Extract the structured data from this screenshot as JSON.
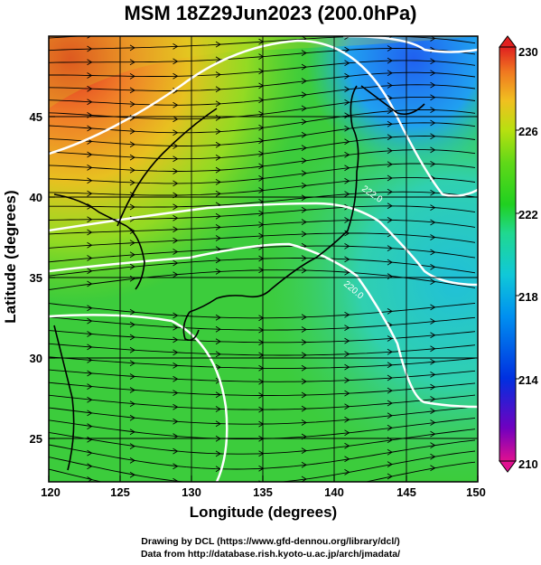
{
  "header": {
    "title": "MSM 18Z29Jun2023 (200.0hPa)"
  },
  "axes": {
    "x_label": "Longitude (degrees)",
    "y_label": "Latitude  (degrees)",
    "x_ticks": [
      "120",
      "125",
      "130",
      "135",
      "140",
      "145",
      "150"
    ],
    "y_ticks": [
      "25",
      "30",
      "35",
      "40",
      "45"
    ],
    "x_range": [
      120,
      150
    ],
    "y_range": [
      22.5,
      47.6
    ]
  },
  "colorbar": {
    "ticks": [
      "230",
      "226",
      "222",
      "218",
      "214",
      "210"
    ],
    "range": [
      210,
      230
    ],
    "colors": [
      "#e01090",
      "#7000c0",
      "#0030e0",
      "#0090f0",
      "#10c8d8",
      "#20d890",
      "#20d020",
      "#60d818",
      "#b8e010",
      "#f0c020",
      "#f07820",
      "#e02020"
    ]
  },
  "map": {
    "contour_labels": [
      "222.0",
      "220.0"
    ],
    "line_color": "#000000",
    "contour_color": "#ffffff"
  },
  "footer": {
    "line1": "Drawing by DCL (https://www.gfd-dennou.org/library/dcl/)",
    "line2": "Data from http://database.rish.kyoto-u.ac.jp/arch/jmadata/"
  }
}
